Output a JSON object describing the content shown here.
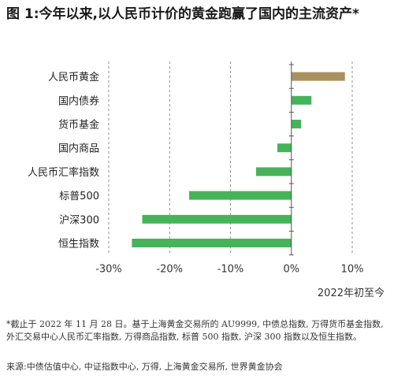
{
  "title": "图 1:今年以来,以人民币计价的黄金跑赢了国内的主流资产*",
  "period_label": "2022年初至今",
  "note": "*截止于 2022 年 11 月 28 日。基于上海黄金交易所的 AU9999, 中债总指数, 万得货币基金指数, 外汇交易中心人民币汇率指数, 万得商品指数, 标普 500 指数, 沪深 300 指数以及恒生指数。",
  "source": "来源:中债估值中心, 中证指数中心, 万得, 上海黄金交易所, 世界黄金协会",
  "colors": {
    "gold": "#a8915f",
    "green": "#46b35a",
    "grid": "#777777",
    "axis": "#555555"
  },
  "chart_data": {
    "type": "bar",
    "orientation": "horizontal",
    "categories": [
      "人民币黄金",
      "国内债券",
      "货币基金",
      "国内商品",
      "人民币汇率指数",
      "标普500",
      "沪深300",
      "恒生指数"
    ],
    "values": [
      8.8,
      3.3,
      1.6,
      -2.3,
      -5.8,
      -16.8,
      -24.5,
      -26.2
    ],
    "highlight_index": 0,
    "xlim": [
      -30,
      10
    ],
    "xticks": [
      -30,
      -20,
      -10,
      0,
      10
    ],
    "xtick_labels": [
      "-30%",
      "-20%",
      "-10%",
      "0%",
      "10%"
    ],
    "grid": "vertical-dashed"
  }
}
